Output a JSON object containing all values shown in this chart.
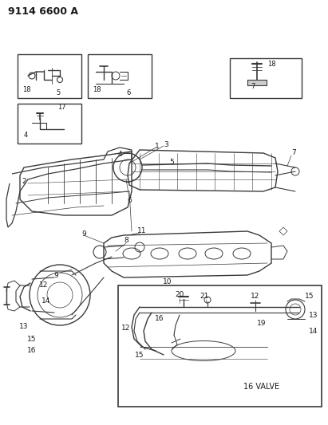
{
  "title": "9114 6600 A",
  "bg_color": "#f5f5f0",
  "line_color": "#3a3a3a",
  "label_color": "#1a1a1a",
  "title_fontsize": 9,
  "label_fontsize": 7
}
